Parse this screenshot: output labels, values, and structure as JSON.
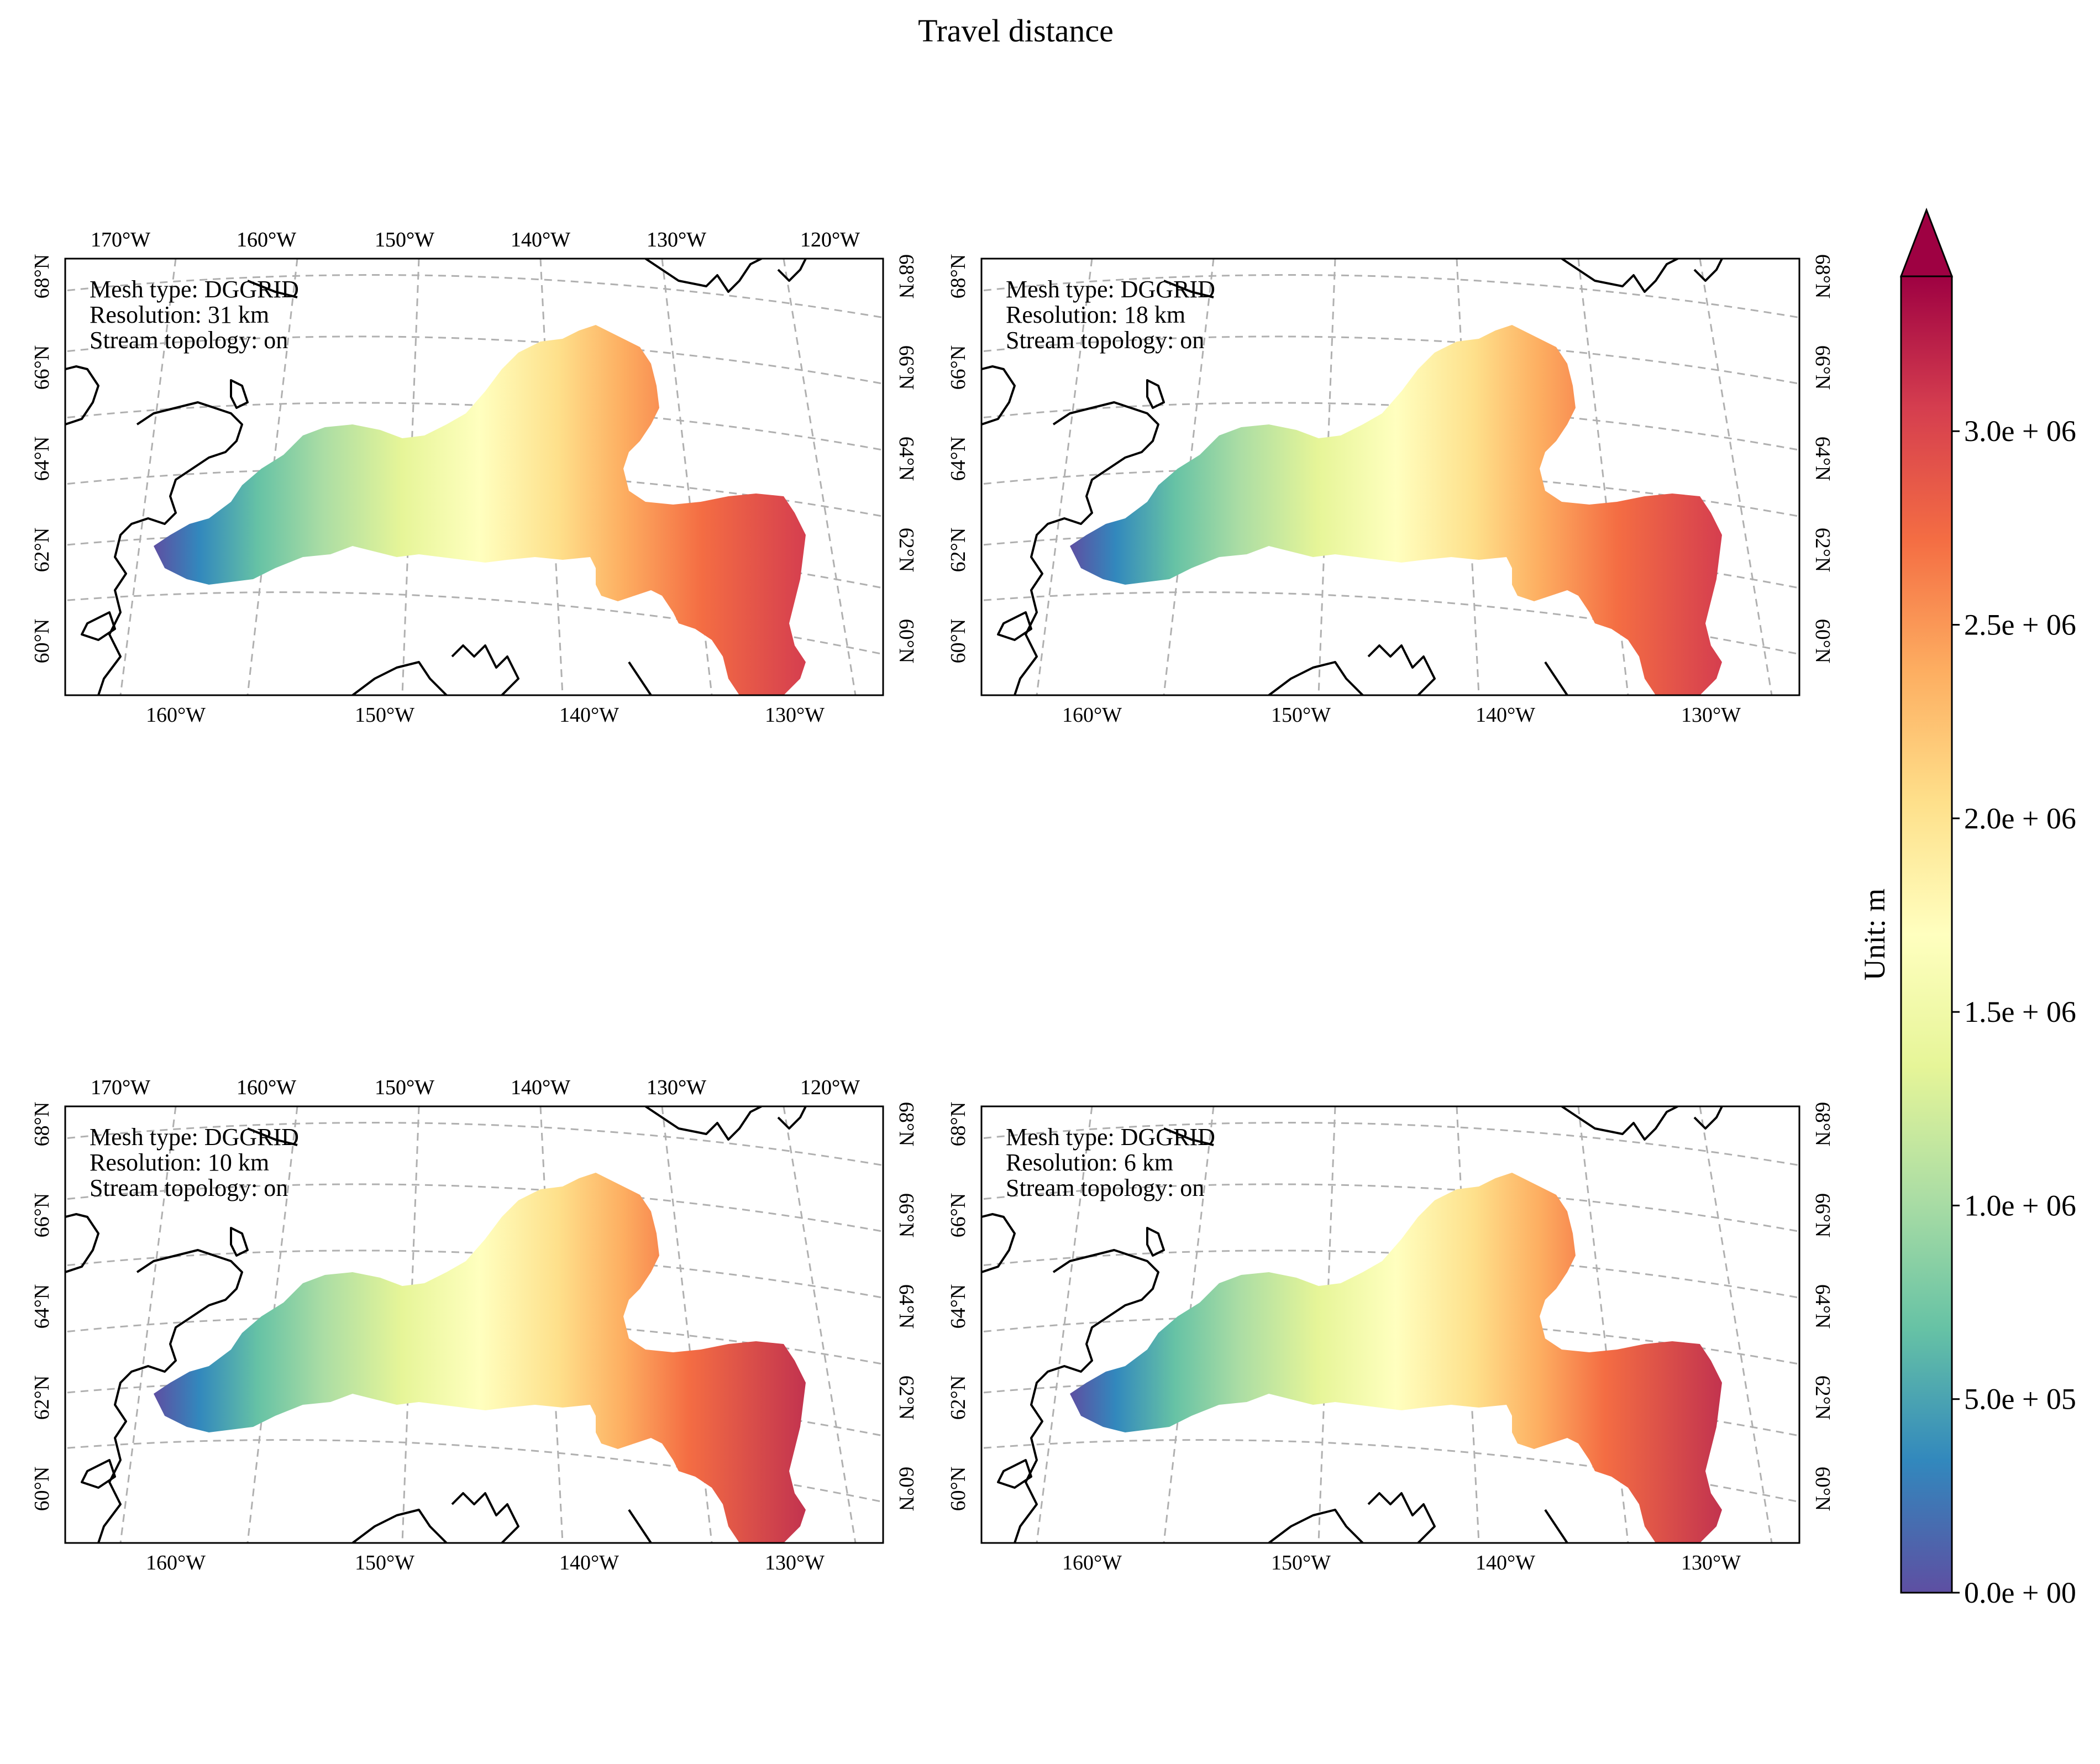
{
  "figure": {
    "title": "Travel distance"
  },
  "colors": {
    "colormap": "Spectral_r",
    "stops": [
      "#5e4fa2",
      "#3288bd",
      "#66c2a5",
      "#abdda4",
      "#e6f598",
      "#ffffbf",
      "#fee08b",
      "#fdae61",
      "#f46d43",
      "#d53e4f",
      "#9e0142"
    ],
    "coastline": "#000000",
    "graticule": "#b0b0b0"
  },
  "axes": {
    "top_lon_labels": [
      "170°W",
      "160°W",
      "150°W",
      "140°W",
      "130°W",
      "120°W"
    ],
    "bottom_lon_labels": [
      "160°W",
      "150°W",
      "140°W",
      "130°W"
    ],
    "lat_labels": [
      "60°N",
      "62°N",
      "64°N",
      "66°N",
      "68°N"
    ]
  },
  "panels": [
    {
      "id": "a",
      "info_lines": [
        "Mesh type: DGGRID",
        "Resolution: 31 km",
        "Stream topology: on"
      ]
    },
    {
      "id": "b",
      "info_lines": [
        "Mesh type: DGGRID",
        "Resolution: 18 km",
        "Stream topology: on"
      ]
    },
    {
      "id": "c",
      "info_lines": [
        "Mesh type: DGGRID",
        "Resolution: 10 km",
        "Stream topology: on"
      ]
    },
    {
      "id": "d",
      "info_lines": [
        "Mesh type: DGGRID",
        "Resolution: 6 km",
        "Stream topology: on"
      ]
    }
  ],
  "colorbar": {
    "label": "Unit: m",
    "min": 0,
    "max": 3400000,
    "extend": "max",
    "ticks": [
      {
        "value": 0,
        "label": "0.0e + 00"
      },
      {
        "value": 500000,
        "label": "5.0e + 05"
      },
      {
        "value": 1000000,
        "label": "1.0e + 06"
      },
      {
        "value": 1500000,
        "label": "1.5e + 06"
      },
      {
        "value": 2000000,
        "label": "2.0e + 06"
      },
      {
        "value": 2500000,
        "label": "2.5e + 06"
      },
      {
        "value": 3000000,
        "label": "3.0e + 06"
      }
    ]
  }
}
